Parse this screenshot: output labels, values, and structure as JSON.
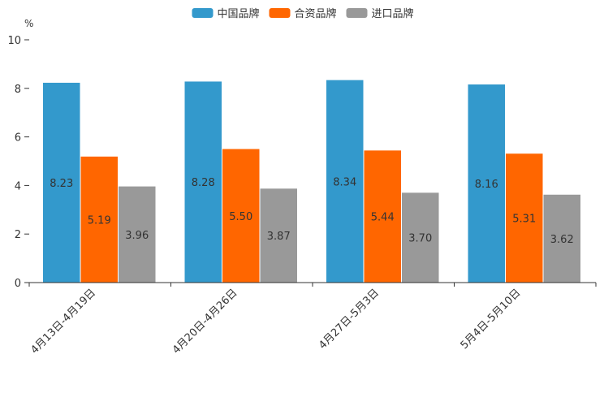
{
  "chart_data": {
    "type": "bar",
    "title": "",
    "xlabel": "",
    "ylabel": "%",
    "ylim": [
      0,
      10
    ],
    "yticks": [
      0,
      2,
      4,
      6,
      8,
      10
    ],
    "grid": false,
    "legend_position": "top-center",
    "categories": [
      "4月13日-4月19日",
      "4月20日-4月26日",
      "4月27日-5月3日",
      "5月4日-5月10日"
    ],
    "series": [
      {
        "name": "中国品牌",
        "color": "#3399cc",
        "values": [
          8.23,
          8.28,
          8.34,
          8.16
        ],
        "labels": [
          "8.23",
          "8.28",
          "8.34",
          "8.16"
        ]
      },
      {
        "name": "合资品牌",
        "color": "#ff6600",
        "values": [
          5.19,
          5.5,
          5.44,
          5.31
        ],
        "labels": [
          "5.19",
          "5.50",
          "5.44",
          "5.31"
        ]
      },
      {
        "name": "进口品牌",
        "color": "#999999",
        "values": [
          3.96,
          3.87,
          3.7,
          3.62
        ],
        "labels": [
          "3.96",
          "3.87",
          "3.70",
          "3.62"
        ]
      }
    ]
  }
}
